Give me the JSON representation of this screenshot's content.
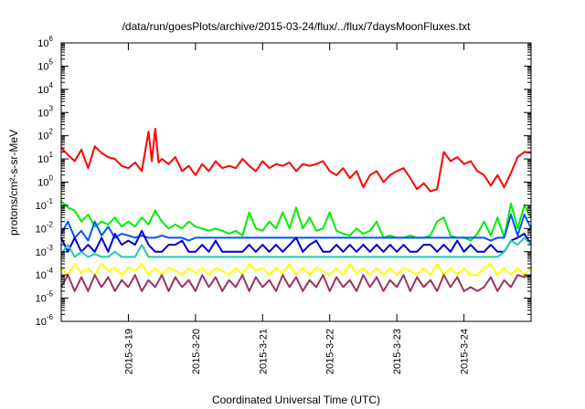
{
  "chart_data": {
    "type": "line",
    "title": "/data/run/goesPlots/archive/2015-03-24/flux/../flux/7daysMoonFluxes.txt",
    "xlabel": "Coordinated Universal Time (UTC)",
    "ylabel": "protons/cm²-s-sr-MeV",
    "yscale": "log",
    "ylim": [
      1e-06,
      1000000.0
    ],
    "xlim_days": [
      0,
      7
    ],
    "grid": false,
    "legend": "none",
    "y_ticks": [
      {
        "base": "10",
        "exp": "-6",
        "value": 1e-06
      },
      {
        "base": "10",
        "exp": "-5",
        "value": 1e-05
      },
      {
        "base": "10",
        "exp": "-4",
        "value": 0.0001
      },
      {
        "base": "10",
        "exp": "-3",
        "value": 0.001
      },
      {
        "base": "10",
        "exp": "-2",
        "value": 0.01
      },
      {
        "base": "10",
        "exp": "-1",
        "value": 0.1
      },
      {
        "base": "10",
        "exp": "0",
        "value": 1
      },
      {
        "base": "10",
        "exp": "1",
        "value": 10
      },
      {
        "base": "10",
        "exp": "2",
        "value": 100
      },
      {
        "base": "10",
        "exp": "3",
        "value": 1000
      },
      {
        "base": "10",
        "exp": "4",
        "value": 10000
      },
      {
        "base": "10",
        "exp": "5",
        "value": 100000
      },
      {
        "base": "10",
        "exp": "6",
        "value": 1000000
      }
    ],
    "x_ticks": [
      {
        "label": "2015-3-19",
        "day": 1
      },
      {
        "label": "2015-3-20",
        "day": 2
      },
      {
        "label": "2015-3-21",
        "day": 3
      },
      {
        "label": "2015-3-22",
        "day": 4
      },
      {
        "label": "2015-3-23",
        "day": 5
      },
      {
        "label": "2015-3-24",
        "day": 6
      }
    ],
    "series": [
      {
        "color": "#ff0000",
        "x_days": [
          0,
          0.1,
          0.2,
          0.3,
          0.4,
          0.5,
          0.6,
          0.7,
          0.8,
          0.9,
          1,
          1.1,
          1.2,
          1.3,
          1.35,
          1.4,
          1.45,
          1.5,
          1.6,
          1.7,
          1.8,
          1.9,
          2,
          2.1,
          2.2,
          2.3,
          2.4,
          2.5,
          2.6,
          2.7,
          2.8,
          2.9,
          3,
          3.1,
          3.2,
          3.3,
          3.4,
          3.5,
          3.6,
          3.7,
          3.8,
          3.9,
          4,
          4.1,
          4.2,
          4.3,
          4.4,
          4.5,
          4.6,
          4.7,
          4.8,
          4.9,
          5,
          5.1,
          5.2,
          5.3,
          5.4,
          5.5,
          5.6,
          5.7,
          5.8,
          5.9,
          6,
          6.1,
          6.2,
          6.3,
          6.4,
          6.5,
          6.6,
          6.7,
          6.8,
          6.9,
          7
        ],
        "values": [
          30,
          15,
          8,
          25,
          4,
          35,
          18,
          12,
          10,
          5,
          4,
          7,
          3,
          150,
          8,
          200,
          7,
          10,
          6,
          12,
          3,
          5,
          2,
          6,
          3,
          8,
          4,
          5,
          4,
          10,
          5,
          3,
          8,
          4,
          6,
          5,
          7,
          3,
          6,
          5,
          6,
          8,
          3,
          2,
          4,
          1.5,
          3,
          0.6,
          2,
          3,
          1,
          2,
          3,
          4,
          1.5,
          0.5,
          0.9,
          0.4,
          0.5,
          20,
          8,
          12,
          6,
          8,
          3,
          2,
          0.7,
          2,
          0.6,
          2.5,
          12,
          20,
          18
        ]
      },
      {
        "color": "#00ee00",
        "x_days": [
          0,
          0.1,
          0.2,
          0.3,
          0.4,
          0.5,
          0.6,
          0.7,
          0.8,
          0.9,
          1,
          1.1,
          1.2,
          1.3,
          1.4,
          1.5,
          1.6,
          1.7,
          1.8,
          1.9,
          2,
          2.1,
          2.2,
          2.3,
          2.4,
          2.5,
          2.6,
          2.7,
          2.8,
          2.9,
          3,
          3.1,
          3.2,
          3.3,
          3.4,
          3.5,
          3.6,
          3.7,
          3.8,
          3.9,
          4,
          4.1,
          4.2,
          4.3,
          4.4,
          4.5,
          4.6,
          4.7,
          4.8,
          4.9,
          5,
          5.1,
          5.2,
          5.3,
          5.4,
          5.5,
          5.6,
          5.7,
          5.8,
          5.9,
          6,
          6.1,
          6.2,
          6.3,
          6.4,
          6.5,
          6.6,
          6.7,
          6.8,
          6.9,
          7
        ],
        "values": [
          0.15,
          0.08,
          0.06,
          0.02,
          0.04,
          0.012,
          0.02,
          0.015,
          0.03,
          0.012,
          0.02,
          0.012,
          0.03,
          0.015,
          0.06,
          0.02,
          0.01,
          0.015,
          0.01,
          0.02,
          0.012,
          0.01,
          0.008,
          0.01,
          0.008,
          0.006,
          0.008,
          0.005,
          0.05,
          0.01,
          0.008,
          0.02,
          0.01,
          0.05,
          0.01,
          0.08,
          0.01,
          0.03,
          0.008,
          0.01,
          0.05,
          0.008,
          0.006,
          0.005,
          0.01,
          0.006,
          0.008,
          0.02,
          0.004,
          0.005,
          0.004,
          0.004,
          0.005,
          0.004,
          0.004,
          0.005,
          0.02,
          0.03,
          0.005,
          0.004,
          0.004,
          0.003,
          0.006,
          0.02,
          0.005,
          0.03,
          0.004,
          0.12,
          0.01,
          0.1,
          0.03
        ]
      },
      {
        "color": "#0055ff",
        "x_days": [
          0,
          0.1,
          0.2,
          0.3,
          0.4,
          0.5,
          0.6,
          0.7,
          0.8,
          0.9,
          1,
          1.1,
          1.2,
          1.3,
          1.4,
          1.5,
          1.6,
          1.7,
          1.8,
          1.9,
          2,
          2.1,
          2.2,
          2.3,
          2.4,
          2.5,
          2.6,
          2.7,
          2.8,
          2.9,
          3,
          3.1,
          3.2,
          3.3,
          3.4,
          3.5,
          3.6,
          3.7,
          3.8,
          3.9,
          4,
          4.1,
          4.2,
          4.3,
          4.4,
          4.5,
          4.6,
          4.7,
          4.8,
          4.9,
          5,
          5.1,
          5.2,
          5.3,
          5.4,
          5.5,
          5.6,
          5.7,
          5.8,
          5.9,
          6,
          6.1,
          6.2,
          6.3,
          6.4,
          6.5,
          6.6,
          6.7,
          6.8,
          6.9,
          7
        ],
        "values": [
          0.006,
          0.02,
          0.004,
          0.008,
          0.003,
          0.02,
          0.005,
          0.012,
          0.004,
          0.006,
          0.005,
          0.004,
          0.005,
          0.004,
          0.004,
          0.005,
          0.004,
          0.004,
          0.004,
          0.003,
          0.004,
          0.004,
          0.004,
          0.004,
          0.004,
          0.004,
          0.004,
          0.004,
          0.004,
          0.004,
          0.004,
          0.004,
          0.004,
          0.004,
          0.004,
          0.004,
          0.004,
          0.004,
          0.004,
          0.004,
          0.004,
          0.004,
          0.004,
          0.004,
          0.004,
          0.004,
          0.004,
          0.004,
          0.004,
          0.004,
          0.004,
          0.004,
          0.004,
          0.004,
          0.004,
          0.004,
          0.004,
          0.004,
          0.004,
          0.004,
          0.004,
          0.004,
          0.004,
          0.004,
          0.003,
          0.004,
          0.004,
          0.04,
          0.005,
          0.04,
          0.01
        ]
      },
      {
        "color": "#0000cc",
        "x_days": [
          0,
          0.1,
          0.2,
          0.3,
          0.4,
          0.5,
          0.6,
          0.7,
          0.8,
          0.9,
          1,
          1.1,
          1.2,
          1.3,
          1.4,
          1.5,
          1.6,
          1.7,
          1.8,
          1.9,
          2,
          2.1,
          2.2,
          2.3,
          2.4,
          2.5,
          2.6,
          2.7,
          2.8,
          2.9,
          3,
          3.1,
          3.2,
          3.3,
          3.4,
          3.5,
          3.6,
          3.7,
          3.8,
          3.9,
          4,
          4.1,
          4.2,
          4.3,
          4.4,
          4.5,
          4.6,
          4.7,
          4.8,
          4.9,
          5,
          5.1,
          5.2,
          5.3,
          5.4,
          5.5,
          5.6,
          5.7,
          5.8,
          5.9,
          6,
          6.1,
          6.2,
          6.3,
          6.4,
          6.5,
          6.6,
          6.7,
          6.8,
          6.9,
          7
        ],
        "values": [
          0.004,
          0.001,
          0.004,
          0.001,
          0.002,
          0.001,
          0.004,
          0.001,
          0.006,
          0.002,
          0.003,
          0.002,
          0.008,
          0.002,
          0.001,
          0.001,
          0.002,
          0.002,
          0.003,
          0.001,
          0.001,
          0.002,
          0.001,
          0.003,
          0.001,
          0.001,
          0.001,
          0.001,
          0.002,
          0.001,
          0.002,
          0.001,
          0.002,
          0.001,
          0.002,
          0.004,
          0.001,
          0.002,
          0.003,
          0.001,
          0.001,
          0.002,
          0.001,
          0.002,
          0.001,
          0.002,
          0.001,
          0.002,
          0.001,
          0.002,
          0.001,
          0.002,
          0.001,
          0.001,
          0.002,
          0.002,
          0.001,
          0.002,
          0.001,
          0.003,
          0.001,
          0.002,
          0.001,
          0.001,
          0.002,
          0.001,
          0.001,
          0.003,
          0.004,
          0.006,
          0.002
        ]
      },
      {
        "color": "#22ccaa",
        "x_days": [
          0,
          0.1,
          0.2,
          0.3,
          0.4,
          0.5,
          0.6,
          0.7,
          0.8,
          0.9,
          1,
          1.1,
          1.2,
          1.3,
          1.4,
          1.5,
          1.6,
          1.7,
          1.8,
          1.9,
          2,
          2.1,
          2.2,
          2.3,
          2.4,
          2.5,
          2.6,
          2.7,
          2.8,
          2.9,
          3,
          3.1,
          3.2,
          3.3,
          3.4,
          3.5,
          3.6,
          3.7,
          3.8,
          3.9,
          4,
          4.1,
          4.2,
          4.3,
          4.4,
          4.5,
          4.6,
          4.7,
          4.8,
          4.9,
          5,
          5.1,
          5.2,
          5.3,
          5.4,
          5.5,
          5.6,
          5.7,
          5.8,
          5.9,
          6,
          6.1,
          6.2,
          6.3,
          6.4,
          6.5,
          6.6,
          6.7,
          6.8,
          6.9,
          7
        ],
        "values": [
          0.0008,
          0.002,
          0.0006,
          0.001,
          0.0006,
          0.0008,
          0.0006,
          0.0006,
          0.001,
          0.0006,
          0.0006,
          0.0006,
          0.002,
          0.0006,
          0.0006,
          0.0006,
          0.0006,
          0.0006,
          0.0006,
          0.0006,
          0.0006,
          0.0006,
          0.0006,
          0.0006,
          0.0006,
          0.0006,
          0.0006,
          0.0006,
          0.0006,
          0.0006,
          0.0006,
          0.0006,
          0.0006,
          0.0006,
          0.0006,
          0.0006,
          0.0006,
          0.0006,
          0.0006,
          0.0006,
          0.0006,
          0.0006,
          0.0006,
          0.0006,
          0.0006,
          0.0006,
          0.0006,
          0.0006,
          0.0006,
          0.0006,
          0.0006,
          0.0006,
          0.0006,
          0.0006,
          0.0006,
          0.0006,
          0.0006,
          0.0006,
          0.0006,
          0.0006,
          0.0006,
          0.0006,
          0.0006,
          0.0006,
          0.0006,
          0.0006,
          0.001,
          0.003,
          0.002,
          0.004,
          0.002
        ]
      },
      {
        "color": "#ffff00",
        "x_days": [
          0,
          0.1,
          0.2,
          0.3,
          0.4,
          0.5,
          0.6,
          0.7,
          0.8,
          0.9,
          1,
          1.1,
          1.2,
          1.3,
          1.4,
          1.5,
          1.6,
          1.7,
          1.8,
          1.9,
          2,
          2.1,
          2.2,
          2.3,
          2.4,
          2.5,
          2.6,
          2.7,
          2.8,
          2.9,
          3,
          3.1,
          3.2,
          3.3,
          3.4,
          3.5,
          3.6,
          3.7,
          3.8,
          3.9,
          4,
          4.1,
          4.2,
          4.3,
          4.4,
          4.5,
          4.6,
          4.7,
          4.8,
          4.9,
          5,
          5.1,
          5.2,
          5.3,
          5.4,
          5.5,
          5.6,
          5.7,
          5.8,
          5.9,
          6,
          6.1,
          6.2,
          6.3,
          6.4,
          6.5,
          6.6,
          6.7,
          6.8,
          6.9,
          7
        ],
        "values": [
          0.0002,
          0.0001,
          0.0003,
          0.00012,
          0.0002,
          0.0001,
          0.0003,
          0.00015,
          0.0002,
          0.0001,
          0.0002,
          0.00015,
          0.0003,
          0.0001,
          0.0002,
          0.0001,
          0.0002,
          0.00015,
          0.0001,
          0.0002,
          0.00012,
          0.0002,
          0.0001,
          0.0002,
          0.00015,
          0.0001,
          0.0002,
          0.0001,
          0.0003,
          0.00015,
          0.0002,
          0.0001,
          0.0002,
          0.00012,
          0.0003,
          0.0001,
          0.0002,
          0.0001,
          0.0002,
          0.00015,
          0.0001,
          0.0002,
          0.0001,
          0.0003,
          0.00012,
          0.0002,
          0.0001,
          0.0002,
          0.0001,
          0.0002,
          0.0001,
          0.0002,
          0.00015,
          0.0001,
          0.0002,
          0.0001,
          0.0003,
          0.0001,
          0.0002,
          0.0001,
          0.0002,
          0.0001,
          0.0001,
          0.0002,
          0.0003,
          0.0001,
          0.0002,
          0.0001,
          0.0002,
          0.0001,
          0.0002
        ]
      },
      {
        "color": "#993366",
        "x_days": [
          0,
          0.1,
          0.2,
          0.3,
          0.4,
          0.5,
          0.6,
          0.7,
          0.8,
          0.9,
          1,
          1.1,
          1.2,
          1.3,
          1.4,
          1.5,
          1.6,
          1.7,
          1.8,
          1.9,
          2,
          2.1,
          2.2,
          2.3,
          2.4,
          2.5,
          2.6,
          2.7,
          2.8,
          2.9,
          3,
          3.1,
          3.2,
          3.3,
          3.4,
          3.5,
          3.6,
          3.7,
          3.8,
          3.9,
          4,
          4.1,
          4.2,
          4.3,
          4.4,
          4.5,
          4.6,
          4.7,
          4.8,
          4.9,
          5,
          5.1,
          5.2,
          5.3,
          5.4,
          5.5,
          5.6,
          5.7,
          5.8,
          5.9,
          6,
          6.1,
          6.2,
          6.3,
          6.4,
          6.5,
          6.6,
          6.7,
          6.8,
          6.9,
          7
        ],
        "values": [
          3e-05,
          0.0001,
          2e-05,
          8e-05,
          2e-05,
          0.0001,
          3e-05,
          8e-05,
          2e-05,
          6e-05,
          3e-05,
          0.0001,
          2e-05,
          6e-05,
          3e-05,
          0.0001,
          2e-05,
          8e-05,
          3e-05,
          6e-05,
          2e-05,
          0.0001,
          3e-05,
          8e-05,
          2e-05,
          6e-05,
          3e-05,
          0.0001,
          2e-05,
          8e-05,
          3e-05,
          6e-05,
          2e-05,
          0.0001,
          3e-05,
          8e-05,
          2e-05,
          6e-05,
          3e-05,
          0.0001,
          2e-05,
          8e-05,
          3e-05,
          6e-05,
          2e-05,
          0.0001,
          3e-05,
          8e-05,
          2e-05,
          6e-05,
          3e-05,
          0.0001,
          2e-05,
          8e-05,
          3e-05,
          6e-05,
          2e-05,
          0.0001,
          3e-05,
          8e-05,
          2e-05,
          3e-05,
          2e-05,
          3e-05,
          8e-05,
          2e-05,
          6e-05,
          3e-05,
          0.0001,
          8e-05,
          0.0001
        ]
      }
    ]
  }
}
